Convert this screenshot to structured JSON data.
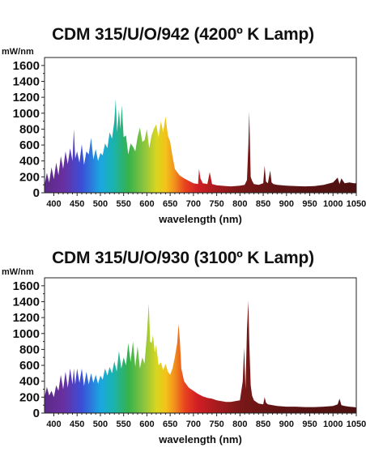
{
  "chart_data": [
    {
      "type": "area",
      "title": "CDM 315/U/O/942 (4200º K Lamp)",
      "ylabel": "mW/nm",
      "xlabel": "wavelength (nm)",
      "xlim": [
        380,
        1050
      ],
      "ylim": [
        0,
        1700
      ],
      "xticks": [
        400,
        450,
        500,
        550,
        600,
        650,
        700,
        750,
        800,
        850,
        900,
        950,
        1000,
        1050
      ],
      "yticks": [
        0,
        200,
        400,
        600,
        800,
        1000,
        1200,
        1400,
        1600
      ],
      "grid": false,
      "series": [
        {
          "x": [
            380,
            385,
            390,
            395,
            400,
            405,
            410,
            415,
            420,
            425,
            430,
            435,
            440,
            443,
            446,
            450,
            455,
            460,
            465,
            470,
            475,
            480,
            485,
            490,
            495,
            500,
            505,
            510,
            515,
            520,
            525,
            530,
            533,
            536,
            540,
            543,
            546,
            550,
            555,
            560,
            565,
            570,
            575,
            580,
            585,
            590,
            595,
            600,
            605,
            610,
            615,
            620,
            625,
            630,
            635,
            640,
            645,
            650,
            655,
            660,
            670,
            680,
            690,
            700,
            710,
            712,
            715,
            720,
            730,
            735,
            740,
            750,
            760,
            770,
            780,
            790,
            800,
            810,
            815,
            818,
            820,
            823,
            826,
            830,
            840,
            850,
            853,
            856,
            860,
            865,
            868,
            872,
            880,
            900,
            920,
            940,
            960,
            980,
            1000,
            1010,
            1014,
            1018,
            1025,
            1035,
            1045,
            1050
          ],
          "values": [
            100,
            250,
            130,
            320,
            170,
            380,
            220,
            460,
            300,
            520,
            360,
            560,
            400,
            800,
            430,
            520,
            380,
            610,
            350,
            520,
            480,
            690,
            420,
            550,
            400,
            500,
            470,
            620,
            560,
            760,
            680,
            900,
            1180,
            760,
            1040,
            800,
            1100,
            700,
            720,
            480,
            620,
            580,
            520,
            700,
            820,
            640,
            660,
            800,
            560,
            720,
            800,
            860,
            700,
            900,
            760,
            960,
            720,
            640,
            460,
            300,
            220,
            180,
            150,
            120,
            110,
            300,
            180,
            120,
            110,
            260,
            110,
            95,
            90,
            85,
            80,
            85,
            90,
            100,
            160,
            600,
            1020,
            200,
            150,
            110,
            100,
            120,
            340,
            140,
            120,
            280,
            130,
            110,
            100,
            90,
            85,
            80,
            85,
            100,
            130,
            190,
            110,
            180,
            120,
            130,
            120,
            120
          ]
        }
      ]
    },
    {
      "type": "area",
      "title": "CDM 315/U/O/930 (3100º K Lamp)",
      "ylabel": "mW/nm",
      "xlabel": "wavelength (nm)",
      "xlim": [
        380,
        1050
      ],
      "ylim": [
        0,
        1700
      ],
      "xticks": [
        400,
        450,
        500,
        550,
        600,
        650,
        700,
        750,
        800,
        850,
        900,
        950,
        1000,
        1050
      ],
      "yticks": [
        0,
        200,
        400,
        600,
        800,
        1000,
        1200,
        1400,
        1600
      ],
      "grid": false,
      "series": [
        {
          "x": [
            380,
            385,
            390,
            395,
            400,
            405,
            410,
            415,
            420,
            425,
            430,
            435,
            440,
            443,
            446,
            450,
            455,
            460,
            465,
            470,
            475,
            480,
            485,
            490,
            495,
            500,
            505,
            510,
            515,
            520,
            525,
            530,
            535,
            540,
            545,
            550,
            555,
            560,
            565,
            570,
            575,
            580,
            585,
            590,
            595,
            600,
            604,
            607,
            610,
            613,
            617,
            620,
            625,
            630,
            635,
            640,
            645,
            650,
            655,
            660,
            665,
            668,
            671,
            674,
            680,
            690,
            700,
            710,
            720,
            730,
            740,
            750,
            760,
            770,
            780,
            790,
            800,
            806,
            809,
            812,
            815,
            818,
            820,
            823,
            826,
            830,
            840,
            850,
            853,
            856,
            860,
            870,
            880,
            900,
            920,
            940,
            960,
            980,
            1000,
            1010,
            1014,
            1018,
            1025,
            1035,
            1045,
            1050
          ],
          "values": [
            200,
            330,
            220,
            280,
            200,
            350,
            280,
            480,
            300,
            520,
            320,
            560,
            360,
            560,
            360,
            560,
            380,
            560,
            340,
            520,
            360,
            500,
            380,
            480,
            370,
            470,
            420,
            560,
            470,
            580,
            500,
            650,
            520,
            780,
            560,
            700,
            600,
            880,
            640,
            900,
            580,
            840,
            560,
            700,
            620,
            980,
            1380,
            900,
            880,
            980,
            760,
            860,
            600,
            640,
            540,
            620,
            520,
            480,
            560,
            700,
            880,
            1120,
            900,
            560,
            400,
            320,
            280,
            240,
            210,
            190,
            180,
            160,
            150,
            140,
            140,
            150,
            160,
            400,
            820,
            300,
            1050,
            1410,
            900,
            350,
            220,
            160,
            120,
            110,
            200,
            130,
            110,
            100,
            90,
            80,
            80,
            75,
            75,
            80,
            90,
            110,
            180,
            100,
            90,
            80,
            75,
            70
          ]
        }
      ]
    }
  ]
}
